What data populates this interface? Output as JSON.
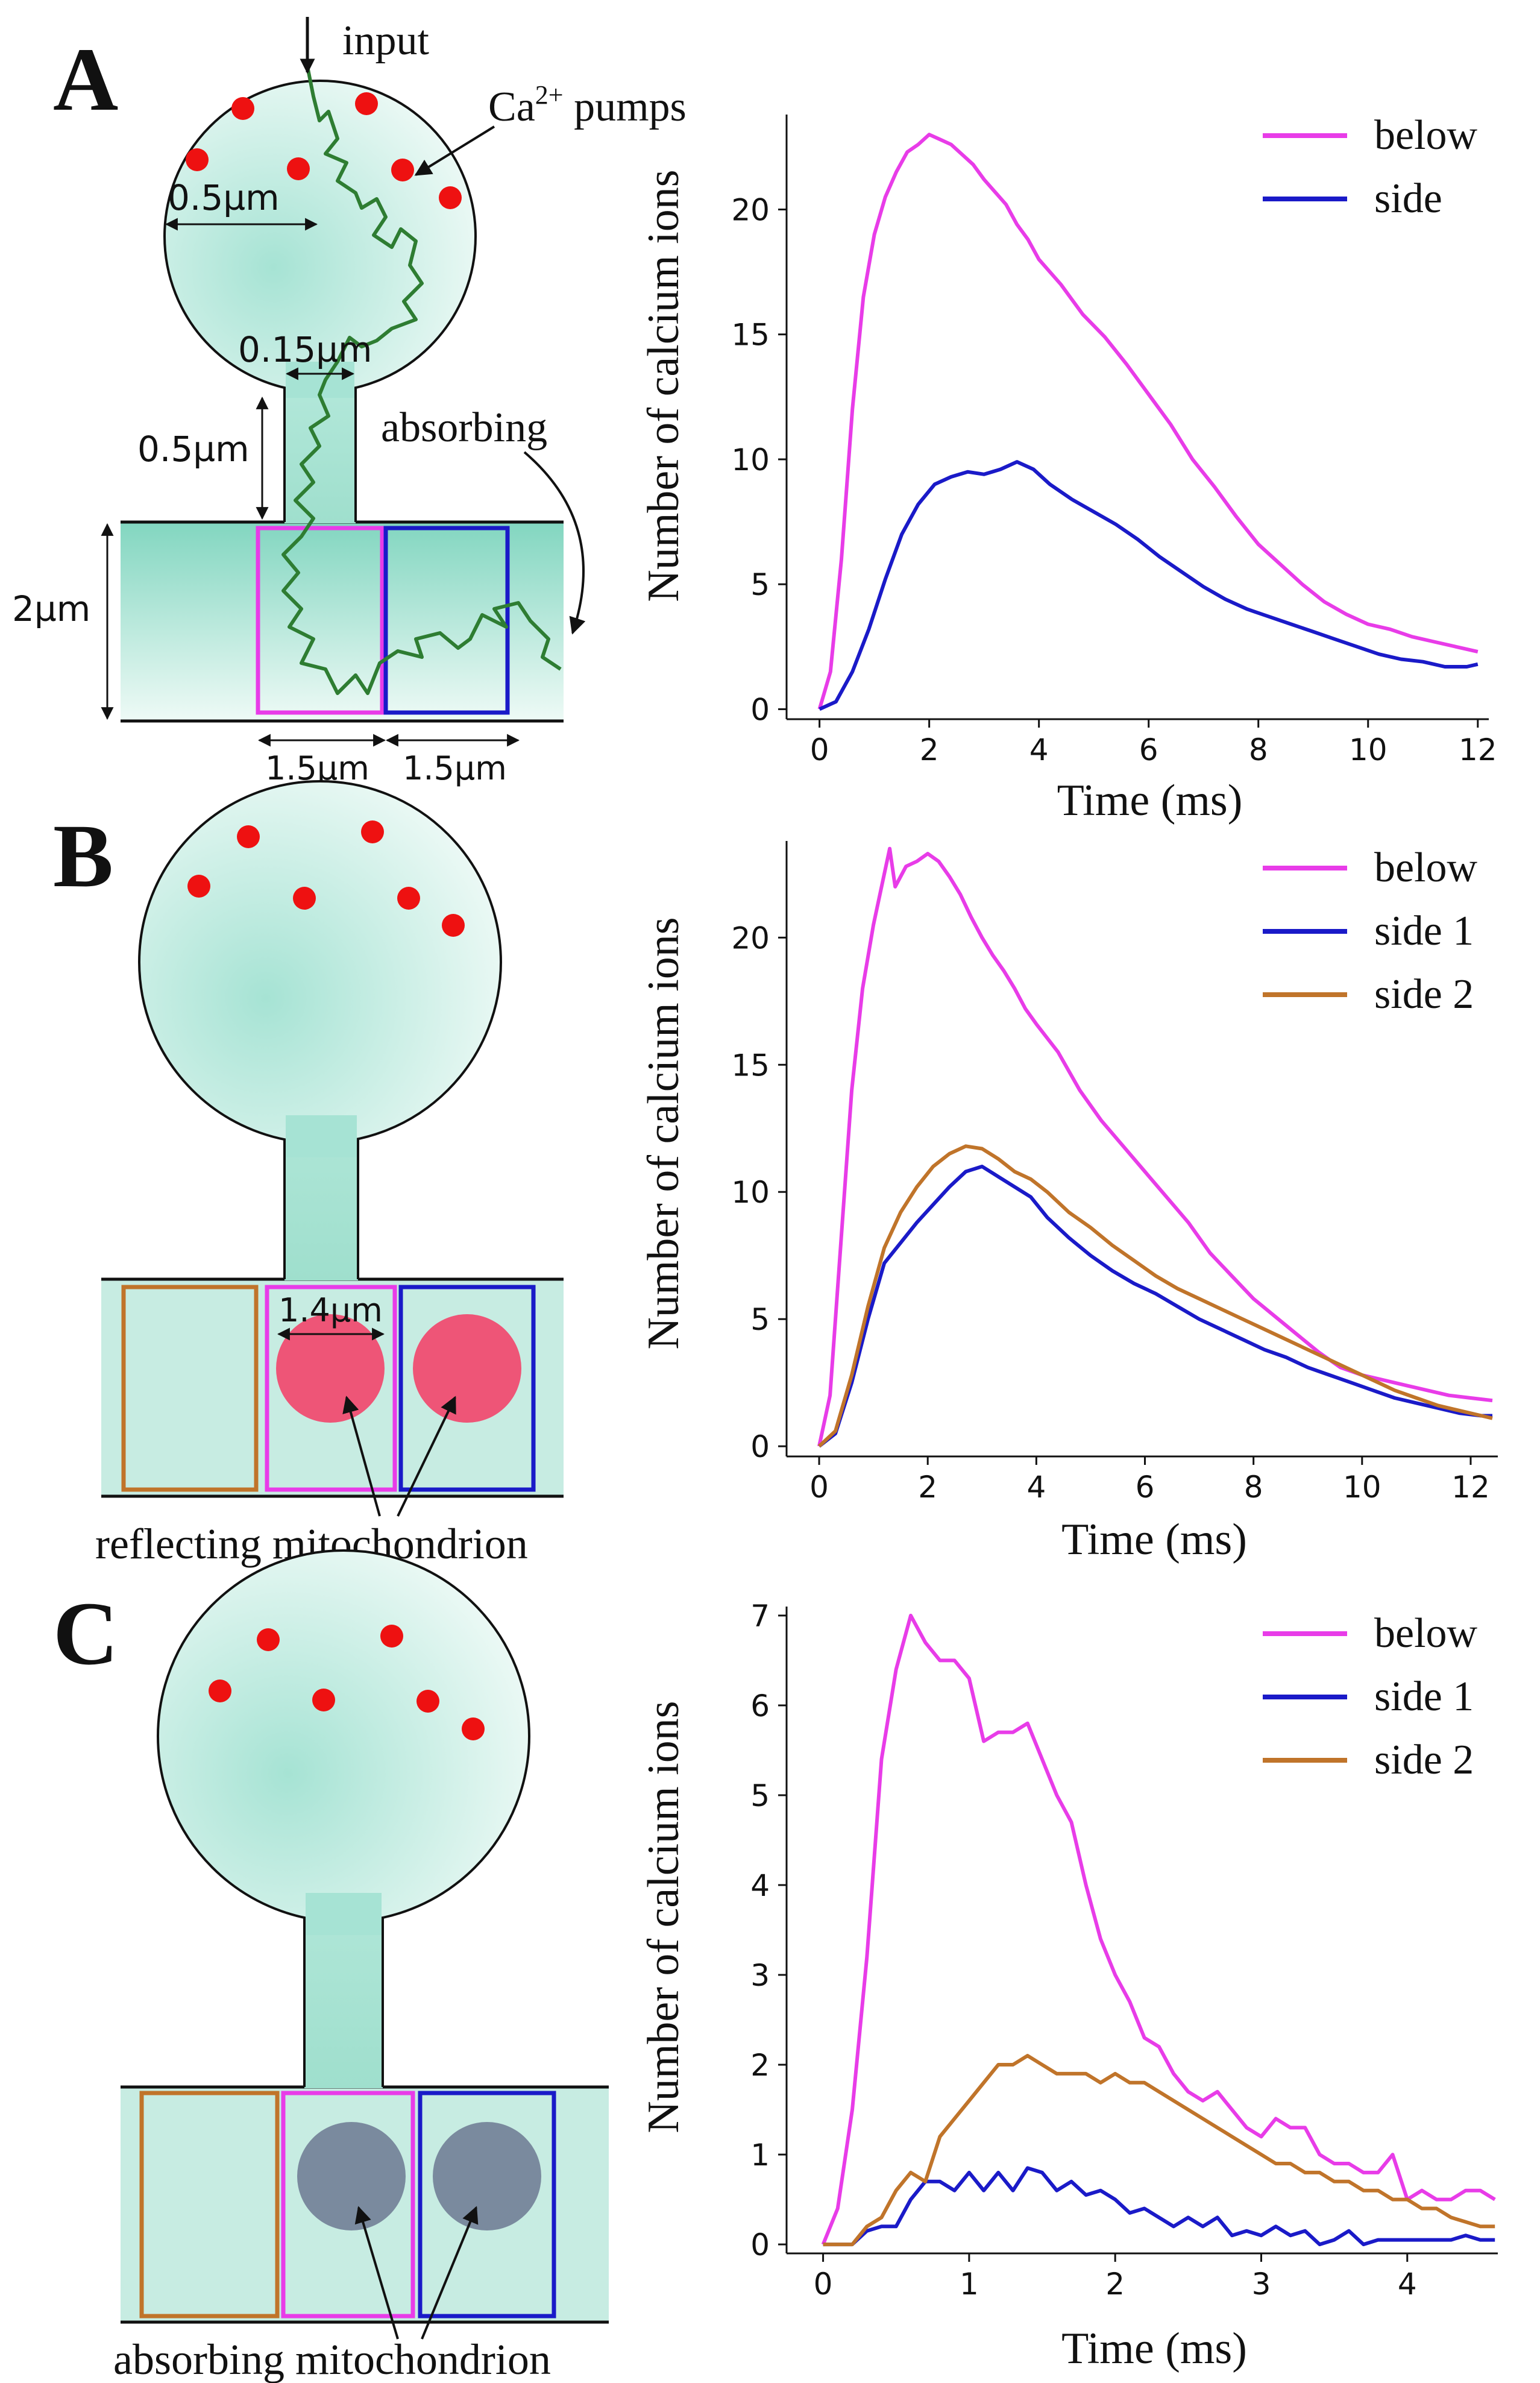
{
  "panels": [
    {
      "letter": "A",
      "diagram": {
        "input_label": "input",
        "pumps_label": "Ca",
        "pumps_superscript": "2+",
        "pumps_suffix": " pumps",
        "radius_label": "0.5µm",
        "neck_width_label": "0.15µm",
        "neck_length_label": "0.5µm",
        "dendrite_label": "2µm",
        "absorbing_label": "absorbing",
        "box_width_1": "1.5µm",
        "box_width_2": "1.5µm"
      }
    },
    {
      "letter": "B",
      "diagram": {
        "mito_label": "1.4µm",
        "caption": "reflecting mitochondrion"
      }
    },
    {
      "letter": "C",
      "diagram": {
        "caption": "absorbing mitochondrion"
      }
    }
  ],
  "colors": {
    "below": "#e83ce8",
    "side": "#1a1ac8",
    "side2": "#c0742a",
    "walk": "#2e7d32",
    "pump": "#ee1111",
    "mito_reflect": "#ee5577",
    "mito_absorb": "#7a8a9e",
    "cyto": "#a6e3d4"
  },
  "chart_data": [
    {
      "type": "line",
      "xlabel": "Time (ms)",
      "ylabel": "Number of calcium ions",
      "xlim": [
        -0.6,
        12.2
      ],
      "ylim": [
        -0.4,
        23.8
      ],
      "xticks": [
        0,
        2,
        4,
        6,
        8,
        10,
        12
      ],
      "yticks": [
        0,
        5,
        10,
        15,
        20
      ],
      "series": [
        {
          "name": "below",
          "color": "#e83ce8",
          "x": [
            0,
            0.2,
            0.4,
            0.6,
            0.8,
            1.0,
            1.2,
            1.4,
            1.6,
            1.8,
            2.0,
            2.2,
            2.4,
            2.6,
            2.8,
            3.0,
            3.2,
            3.4,
            3.6,
            3.8,
            4.0,
            4.4,
            4.8,
            5.2,
            5.6,
            6.0,
            6.4,
            6.8,
            7.2,
            7.6,
            8.0,
            8.4,
            8.8,
            9.2,
            9.6,
            10.0,
            10.4,
            10.8,
            11.2,
            11.6,
            12.0
          ],
          "y": [
            0,
            1.5,
            6,
            12,
            16.5,
            19,
            20.5,
            21.5,
            22.3,
            22.6,
            23.0,
            22.8,
            22.6,
            22.2,
            21.8,
            21.2,
            20.7,
            20.2,
            19.4,
            18.8,
            18.0,
            17.0,
            15.8,
            14.9,
            13.8,
            12.6,
            11.4,
            10.0,
            8.9,
            7.7,
            6.6,
            5.8,
            5.0,
            4.3,
            3.8,
            3.4,
            3.2,
            2.9,
            2.7,
            2.5,
            2.3
          ]
        },
        {
          "name": "side",
          "color": "#1a1ac8",
          "x": [
            0,
            0.3,
            0.6,
            0.9,
            1.2,
            1.5,
            1.8,
            2.1,
            2.4,
            2.7,
            3.0,
            3.3,
            3.6,
            3.9,
            4.2,
            4.6,
            5.0,
            5.4,
            5.8,
            6.2,
            6.6,
            7.0,
            7.4,
            7.8,
            8.2,
            8.6,
            9.0,
            9.4,
            9.8,
            10.2,
            10.6,
            11.0,
            11.4,
            11.8,
            12.0
          ],
          "y": [
            0,
            0.3,
            1.5,
            3.2,
            5.2,
            7.0,
            8.2,
            9.0,
            9.3,
            9.5,
            9.4,
            9.6,
            9.9,
            9.6,
            9.0,
            8.4,
            7.9,
            7.4,
            6.8,
            6.1,
            5.5,
            4.9,
            4.4,
            4.0,
            3.7,
            3.4,
            3.1,
            2.8,
            2.5,
            2.2,
            2.0,
            1.9,
            1.7,
            1.7,
            1.8
          ]
        }
      ]
    },
    {
      "type": "line",
      "xlabel": "Time (ms)",
      "ylabel": "Number of calcium ions",
      "xlim": [
        -0.6,
        12.5
      ],
      "ylim": [
        -0.4,
        23.8
      ],
      "xticks": [
        0,
        2,
        4,
        6,
        8,
        10,
        12
      ],
      "yticks": [
        0,
        5,
        10,
        15,
        20
      ],
      "series": [
        {
          "name": "below",
          "color": "#e83ce8",
          "x": [
            0,
            0.2,
            0.4,
            0.6,
            0.8,
            1.0,
            1.2,
            1.3,
            1.4,
            1.6,
            1.8,
            2.0,
            2.2,
            2.4,
            2.6,
            2.8,
            3.0,
            3.2,
            3.4,
            3.6,
            3.8,
            4.0,
            4.4,
            4.8,
            5.2,
            5.6,
            6.0,
            6.4,
            6.8,
            7.2,
            7.6,
            8.0,
            8.4,
            8.8,
            9.2,
            9.6,
            10.0,
            10.4,
            10.8,
            11.2,
            11.6,
            12.0,
            12.4
          ],
          "y": [
            0,
            2,
            8,
            14,
            18,
            20.5,
            22.5,
            23.5,
            22.0,
            22.8,
            23.0,
            23.3,
            23.0,
            22.4,
            21.7,
            20.8,
            20.0,
            19.3,
            18.7,
            18.0,
            17.2,
            16.6,
            15.5,
            14.0,
            12.8,
            11.8,
            10.8,
            9.8,
            8.8,
            7.6,
            6.7,
            5.8,
            5.1,
            4.4,
            3.7,
            3.1,
            2.8,
            2.6,
            2.4,
            2.2,
            2.0,
            1.9,
            1.8
          ]
        },
        {
          "name": "side 1",
          "color": "#1a1ac8",
          "x": [
            0,
            0.3,
            0.6,
            0.9,
            1.2,
            1.5,
            1.8,
            2.1,
            2.4,
            2.7,
            3.0,
            3.3,
            3.6,
            3.9,
            4.2,
            4.6,
            5.0,
            5.4,
            5.8,
            6.2,
            6.6,
            7.0,
            7.4,
            7.8,
            8.2,
            8.6,
            9.0,
            9.4,
            9.8,
            10.2,
            10.6,
            11.0,
            11.4,
            11.8,
            12.2,
            12.4
          ],
          "y": [
            0,
            0.5,
            2.5,
            5.0,
            7.2,
            8.0,
            8.8,
            9.5,
            10.2,
            10.8,
            11.0,
            10.6,
            10.2,
            9.8,
            9.0,
            8.2,
            7.5,
            6.9,
            6.4,
            6.0,
            5.5,
            5.0,
            4.6,
            4.2,
            3.8,
            3.5,
            3.1,
            2.8,
            2.5,
            2.2,
            1.9,
            1.7,
            1.5,
            1.3,
            1.2,
            1.2
          ]
        },
        {
          "name": "side 2",
          "color": "#c0742a",
          "x": [
            0,
            0.3,
            0.6,
            0.9,
            1.2,
            1.5,
            1.8,
            2.1,
            2.4,
            2.7,
            3.0,
            3.3,
            3.6,
            3.9,
            4.2,
            4.6,
            5.0,
            5.4,
            5.8,
            6.2,
            6.6,
            7.0,
            7.4,
            7.8,
            8.2,
            8.6,
            9.0,
            9.4,
            9.8,
            10.2,
            10.6,
            11.0,
            11.4,
            11.8,
            12.2,
            12.4
          ],
          "y": [
            0,
            0.6,
            2.8,
            5.5,
            7.8,
            9.2,
            10.2,
            11.0,
            11.5,
            11.8,
            11.7,
            11.3,
            10.8,
            10.5,
            10.0,
            9.2,
            8.6,
            7.9,
            7.3,
            6.7,
            6.2,
            5.8,
            5.4,
            5.0,
            4.6,
            4.2,
            3.8,
            3.4,
            3.0,
            2.6,
            2.2,
            1.9,
            1.6,
            1.4,
            1.2,
            1.1
          ]
        }
      ]
    },
    {
      "type": "line",
      "xlabel": "Time (ms)",
      "ylabel": "Number of calcium ions",
      "xlim": [
        -0.25,
        4.62
      ],
      "ylim": [
        -0.1,
        7.1
      ],
      "xticks": [
        0,
        1,
        2,
        3,
        4
      ],
      "yticks": [
        0,
        1,
        2,
        3,
        4,
        5,
        6,
        7
      ],
      "series": [
        {
          "name": "below",
          "color": "#e83ce8",
          "x": [
            0,
            0.1,
            0.2,
            0.3,
            0.4,
            0.5,
            0.6,
            0.7,
            0.8,
            0.9,
            1.0,
            1.1,
            1.2,
            1.3,
            1.4,
            1.5,
            1.6,
            1.7,
            1.8,
            1.9,
            2.0,
            2.1,
            2.2,
            2.3,
            2.4,
            2.5,
            2.6,
            2.7,
            2.8,
            2.9,
            3.0,
            3.1,
            3.2,
            3.3,
            3.4,
            3.5,
            3.6,
            3.7,
            3.8,
            3.9,
            4.0,
            4.1,
            4.2,
            4.3,
            4.4,
            4.5,
            4.6
          ],
          "y": [
            0,
            0.4,
            1.5,
            3.2,
            5.4,
            6.4,
            7.0,
            6.7,
            6.5,
            6.5,
            6.3,
            5.6,
            5.7,
            5.7,
            5.8,
            5.4,
            5.0,
            4.7,
            4.0,
            3.4,
            3.0,
            2.7,
            2.3,
            2.2,
            1.9,
            1.7,
            1.6,
            1.7,
            1.5,
            1.3,
            1.2,
            1.4,
            1.3,
            1.3,
            1.0,
            0.9,
            0.9,
            0.8,
            0.8,
            1.0,
            0.5,
            0.6,
            0.5,
            0.5,
            0.6,
            0.6,
            0.5
          ]
        },
        {
          "name": "side 1",
          "color": "#1a1ac8",
          "x": [
            0,
            0.1,
            0.2,
            0.3,
            0.4,
            0.5,
            0.6,
            0.7,
            0.8,
            0.9,
            1.0,
            1.1,
            1.2,
            1.3,
            1.4,
            1.5,
            1.6,
            1.7,
            1.8,
            1.9,
            2.0,
            2.1,
            2.2,
            2.3,
            2.4,
            2.5,
            2.6,
            2.7,
            2.8,
            2.9,
            3.0,
            3.1,
            3.2,
            3.3,
            3.4,
            3.5,
            3.6,
            3.7,
            3.8,
            3.9,
            4.0,
            4.1,
            4.2,
            4.3,
            4.4,
            4.5,
            4.6
          ],
          "y": [
            0,
            0,
            0,
            0.15,
            0.2,
            0.2,
            0.5,
            0.7,
            0.7,
            0.6,
            0.8,
            0.6,
            0.8,
            0.6,
            0.85,
            0.8,
            0.6,
            0.7,
            0.55,
            0.6,
            0.5,
            0.35,
            0.4,
            0.3,
            0.2,
            0.3,
            0.2,
            0.3,
            0.1,
            0.15,
            0.1,
            0.2,
            0.1,
            0.15,
            0,
            0.05,
            0.15,
            0,
            0.05,
            0.05,
            0.05,
            0.05,
            0.05,
            0.05,
            0.1,
            0.05,
            0.05
          ]
        },
        {
          "name": "side 2",
          "color": "#c0742a",
          "x": [
            0,
            0.1,
            0.2,
            0.3,
            0.4,
            0.5,
            0.6,
            0.7,
            0.8,
            0.9,
            1.0,
            1.1,
            1.2,
            1.3,
            1.4,
            1.5,
            1.6,
            1.7,
            1.8,
            1.9,
            2.0,
            2.1,
            2.2,
            2.3,
            2.4,
            2.5,
            2.6,
            2.7,
            2.8,
            2.9,
            3.0,
            3.1,
            3.2,
            3.3,
            3.4,
            3.5,
            3.6,
            3.7,
            3.8,
            3.9,
            4.0,
            4.1,
            4.2,
            4.3,
            4.4,
            4.5,
            4.6
          ],
          "y": [
            0,
            0,
            0,
            0.2,
            0.3,
            0.6,
            0.8,
            0.7,
            1.2,
            1.4,
            1.6,
            1.8,
            2.0,
            2.0,
            2.1,
            2.0,
            1.9,
            1.9,
            1.9,
            1.8,
            1.9,
            1.8,
            1.8,
            1.7,
            1.6,
            1.5,
            1.4,
            1.3,
            1.2,
            1.1,
            1.0,
            0.9,
            0.9,
            0.8,
            0.8,
            0.7,
            0.7,
            0.6,
            0.6,
            0.5,
            0.5,
            0.4,
            0.4,
            0.3,
            0.25,
            0.2,
            0.2
          ]
        }
      ]
    }
  ]
}
